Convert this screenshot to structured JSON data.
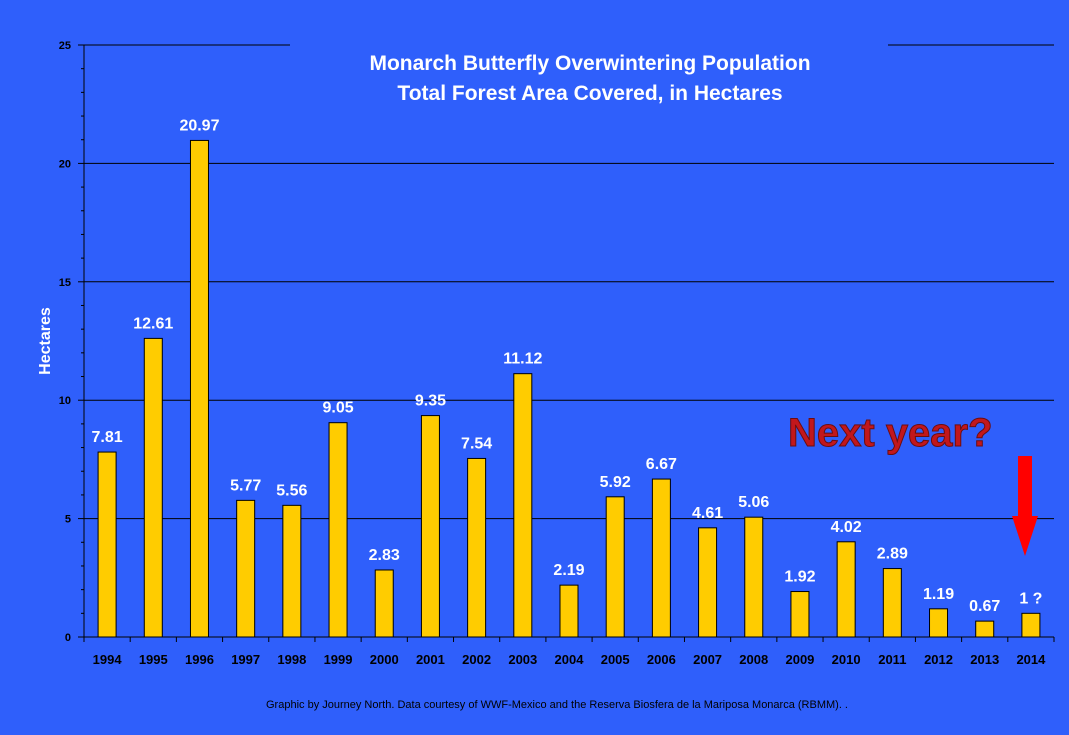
{
  "chart_data": {
    "type": "bar",
    "title_lines": [
      "Monarch Butterfly Overwintering Population",
      "Total Forest Area Covered, in Hectares"
    ],
    "xlabel": "",
    "ylabel": "Hectares",
    "ylim": [
      0,
      25
    ],
    "yticks": [
      "0",
      "5",
      "10",
      "15",
      "20",
      "25"
    ],
    "grid": "horizontal major gridlines",
    "categories": [
      "1994",
      "1995",
      "1996",
      "1997",
      "1998",
      "1999",
      "2000",
      "2001",
      "2002",
      "2003",
      "2004",
      "2005",
      "2006",
      "2007",
      "2008",
      "2009",
      "2010",
      "2011",
      "2012",
      "2013",
      "2014"
    ],
    "values": [
      7.81,
      12.61,
      20.97,
      5.77,
      5.56,
      9.05,
      2.83,
      9.35,
      7.54,
      11.12,
      2.19,
      5.92,
      6.67,
      4.61,
      5.06,
      1.92,
      4.02,
      2.89,
      1.19,
      0.67,
      1
    ],
    "data_labels": [
      "7.81",
      "12.61",
      "20.97",
      "5.77",
      "5.56",
      "9.05",
      "2.83",
      "9.35",
      "7.54",
      "11.12",
      "2.19",
      "5.92",
      "6.67",
      "4.61",
      "5.06",
      "1.92",
      "4.02",
      "2.89",
      "1.19",
      "0.67",
      "1 ?"
    ],
    "annotation": "Next year?",
    "credit": "Graphic by Journey North. Data courtesy of WWF-Mexico and the Reserva Biosfera de la Mariposa Monarca (RBMM). .",
    "colors": {
      "background": "#2f5ffb",
      "bar": "#ffcc00",
      "bar_outline": "#000000",
      "annotation": "#c2171c",
      "arrow": "#ff0000"
    }
  }
}
